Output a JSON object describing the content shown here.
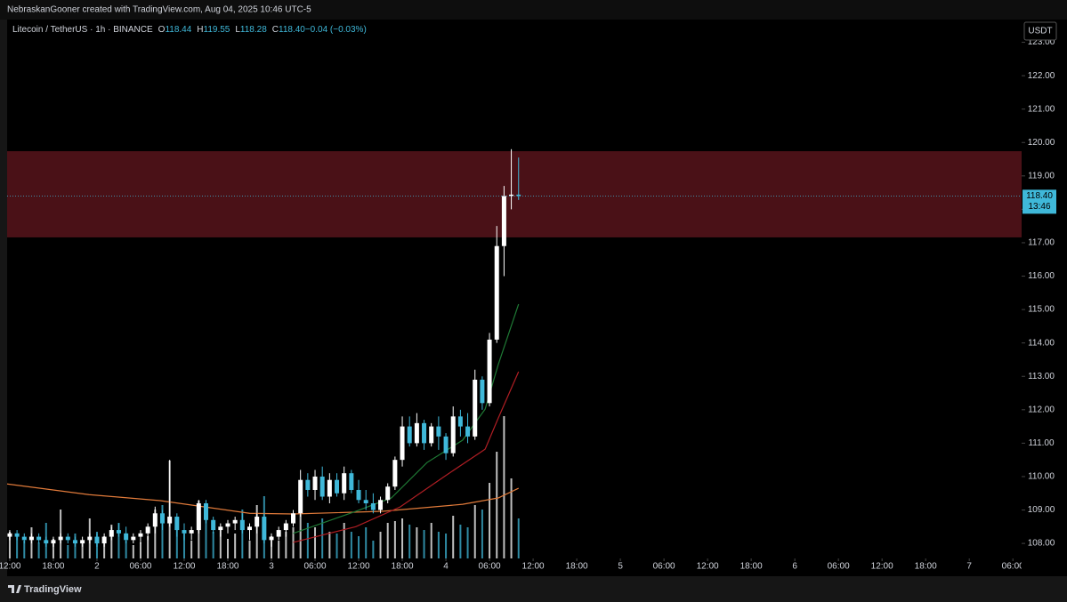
{
  "chart_data": {
    "type": "candlestick",
    "title": "NebraskanGooner created with TradingView.com, Aug 04, 2025 10:46 UTC-5",
    "subtitle": "Litecoin / TetherUS · 1h · BINANCE",
    "legend_values": [
      {
        "key": "O",
        "value": "118.44"
      },
      {
        "key": "H",
        "value": "119.55"
      },
      {
        "key": "L",
        "value": "118.28"
      },
      {
        "key": "C",
        "value": "118.40"
      },
      {
        "key": "",
        "value": "−0.04 (−0.03%)"
      }
    ],
    "currency": "USDT",
    "last_price": 118.4,
    "last_price_label": "118.40",
    "countdown": "13:46",
    "footer": "TradingView",
    "up_color": "#ffffff",
    "down_color": "#3fb8d9",
    "zone": {
      "from": 117.16,
      "to": 119.74,
      "color": "#4a1117"
    },
    "ylim": [
      107.55,
      123.68
    ],
    "yticks": [
      {
        "value": 108,
        "label": "108.00"
      },
      {
        "value": 109,
        "label": "109.00"
      },
      {
        "value": 110,
        "label": "110.00"
      },
      {
        "value": 111,
        "label": "111.00"
      },
      {
        "value": 112,
        "label": "112.00"
      },
      {
        "value": 113,
        "label": "113.00"
      },
      {
        "value": 114,
        "label": "114.00"
      },
      {
        "value": 115,
        "label": "115.00"
      },
      {
        "value": 116,
        "label": "116.00"
      },
      {
        "value": 117,
        "label": "117.00"
      },
      {
        "value": 118,
        "label": "118.00"
      },
      {
        "value": 119,
        "label": "119.00"
      },
      {
        "value": 120,
        "label": "120.00"
      },
      {
        "value": 121,
        "label": "121.00"
      },
      {
        "value": 122,
        "label": "122.00"
      },
      {
        "value": 123,
        "label": "123.00"
      }
    ],
    "xlim": [
      -12.36,
      127.2
    ],
    "xticks": [
      {
        "value": -12,
        "label": "12:00"
      },
      {
        "value": -6,
        "label": "18:00"
      },
      {
        "value": 0,
        "label": "2"
      },
      {
        "value": 6,
        "label": "06:00"
      },
      {
        "value": 12,
        "label": "12:00"
      },
      {
        "value": 18,
        "label": "18:00"
      },
      {
        "value": 24,
        "label": "3"
      },
      {
        "value": 30,
        "label": "06:00"
      },
      {
        "value": 36,
        "label": "12:00"
      },
      {
        "value": 42,
        "label": "18:00"
      },
      {
        "value": 48,
        "label": "4"
      },
      {
        "value": 54,
        "label": "06:00"
      },
      {
        "value": 60,
        "label": "12:00"
      },
      {
        "value": 66,
        "label": "18:00"
      },
      {
        "value": 72,
        "label": "5"
      },
      {
        "value": 78,
        "label": "06:00"
      },
      {
        "value": 84,
        "label": "12:00"
      },
      {
        "value": 90,
        "label": "18:00"
      },
      {
        "value": 96,
        "label": "6"
      },
      {
        "value": 102,
        "label": "06:00"
      },
      {
        "value": 108,
        "label": "12:00"
      },
      {
        "value": 114,
        "label": "18:00"
      },
      {
        "value": 120,
        "label": "7"
      },
      {
        "value": 126,
        "label": "06:00"
      }
    ],
    "x": [
      -12,
      -11,
      -10,
      -9,
      -8,
      -7,
      -6,
      -5,
      -4,
      -3,
      -2,
      -1,
      0,
      1,
      2,
      3,
      4,
      5,
      6,
      7,
      8,
      9,
      10,
      11,
      12,
      13,
      14,
      15,
      16,
      17,
      18,
      19,
      20,
      21,
      22,
      23,
      24,
      25,
      26,
      27,
      28,
      29,
      30,
      31,
      32,
      33,
      34,
      35,
      36,
      37,
      38,
      39,
      40,
      41,
      42,
      43,
      44,
      45,
      46,
      47,
      48,
      49,
      50,
      51,
      52,
      53,
      54,
      55,
      56,
      57,
      58
    ],
    "open": [
      108.2,
      108.3,
      108.2,
      108.1,
      108.2,
      108.1,
      108.0,
      108.1,
      108.2,
      108.1,
      108.0,
      108.1,
      108.2,
      108.0,
      108.2,
      108.4,
      108.3,
      108.1,
      108.2,
      108.3,
      108.5,
      108.9,
      108.6,
      108.8,
      108.4,
      108.3,
      108.4,
      109.2,
      108.7,
      108.4,
      108.5,
      108.6,
      108.7,
      108.4,
      108.5,
      108.8,
      108.1,
      108.2,
      108.4,
      108.6,
      108.9,
      109.9,
      109.6,
      110.0,
      109.4,
      109.9,
      109.5,
      110.1,
      109.6,
      109.3,
      109.2,
      109.0,
      109.3,
      109.7,
      110.5,
      111.5,
      111.0,
      111.6,
      111.0,
      111.5,
      111.2,
      110.7,
      111.8,
      111.5,
      111.2,
      112.9,
      112.2,
      114.1,
      116.9,
      118.4,
      118.44
    ],
    "high": [
      108.4,
      108.4,
      108.3,
      108.3,
      108.3,
      108.2,
      108.2,
      108.3,
      108.3,
      108.2,
      108.2,
      108.3,
      108.3,
      108.3,
      108.5,
      108.6,
      108.5,
      108.3,
      108.4,
      108.6,
      109.1,
      109.0,
      110.5,
      108.9,
      108.6,
      108.5,
      109.3,
      109.3,
      108.8,
      108.6,
      108.7,
      108.8,
      108.9,
      108.6,
      108.9,
      108.9,
      108.3,
      108.5,
      108.7,
      109.0,
      110.2,
      110.1,
      110.2,
      110.3,
      110.1,
      110.1,
      110.3,
      110.2,
      109.9,
      109.6,
      109.5,
      109.4,
      109.8,
      110.6,
      111.8,
      111.8,
      111.9,
      111.7,
      111.6,
      111.8,
      111.3,
      112.1,
      112.0,
      111.9,
      113.2,
      113.0,
      114.3,
      117.5,
      118.7,
      119.8,
      119.55
    ],
    "low": [
      108.1,
      108.1,
      108.0,
      108.0,
      108.0,
      107.9,
      107.9,
      108.0,
      108.0,
      107.9,
      107.9,
      108.0,
      107.9,
      107.9,
      108.1,
      108.2,
      108.0,
      108.0,
      108.0,
      108.1,
      108.3,
      108.4,
      108.5,
      108.2,
      108.1,
      108.1,
      108.3,
      108.6,
      108.3,
      108.2,
      108.3,
      108.4,
      108.3,
      108.1,
      108.3,
      108.0,
      107.9,
      108.1,
      108.2,
      108.5,
      108.8,
      109.4,
      109.3,
      109.3,
      109.2,
      109.4,
      109.3,
      109.5,
      109.2,
      109.0,
      108.9,
      108.9,
      109.2,
      109.6,
      110.3,
      110.9,
      110.9,
      110.8,
      110.9,
      110.8,
      110.5,
      110.6,
      111.2,
      111.0,
      111.1,
      112.0,
      112.1,
      114.0,
      116.0,
      118.0,
      118.28
    ],
    "close": [
      108.3,
      108.2,
      108.1,
      108.2,
      108.1,
      108.0,
      108.1,
      108.2,
      108.1,
      108.0,
      108.1,
      108.2,
      108.0,
      108.2,
      108.4,
      108.3,
      108.1,
      108.2,
      108.3,
      108.5,
      108.9,
      108.6,
      108.8,
      108.4,
      108.3,
      108.4,
      109.2,
      108.7,
      108.4,
      108.5,
      108.6,
      108.7,
      108.4,
      108.5,
      108.8,
      108.1,
      108.2,
      108.4,
      108.6,
      108.9,
      109.9,
      109.6,
      110.0,
      109.4,
      109.9,
      109.5,
      110.1,
      109.6,
      109.3,
      109.2,
      109.0,
      109.3,
      109.7,
      110.5,
      111.5,
      111.0,
      111.6,
      111.0,
      111.5,
      111.2,
      110.7,
      111.8,
      111.5,
      111.2,
      112.9,
      112.2,
      114.1,
      116.9,
      118.4,
      118.44,
      118.4
    ],
    "volume": [
      30,
      25,
      20,
      35,
      18,
      40,
      22,
      55,
      15,
      28,
      20,
      45,
      30,
      25,
      38,
      40,
      20,
      15,
      18,
      25,
      55,
      60,
      110,
      40,
      28,
      20,
      65,
      45,
      30,
      35,
      22,
      28,
      55,
      20,
      60,
      70,
      25,
      20,
      30,
      35,
      50,
      40,
      35,
      45,
      30,
      28,
      40,
      30,
      25,
      35,
      20,
      30,
      40,
      42,
      45,
      38,
      35,
      32,
      40,
      30,
      28,
      48,
      38,
      35,
      60,
      55,
      85,
      120,
      160,
      90,
      45
    ],
    "lines": [
      {
        "color": "#e07a3a",
        "x": [
          -12.4,
          -1.1,
          8.7,
          21,
          27,
          39.3,
          50.3,
          55.2,
          58
        ],
        "values": [
          109.78,
          109.46,
          109.28,
          108.9,
          108.88,
          108.96,
          109.17,
          109.36,
          109.65
        ]
      },
      {
        "color": "#b01e24",
        "x": [
          27,
          35.6,
          41.7,
          47.9,
          53.4,
          55.2,
          58
        ],
        "values": [
          108.03,
          108.5,
          109.09,
          110.02,
          110.82,
          111.75,
          113.14
        ]
      },
      {
        "color": "#1f7a35",
        "x": [
          27,
          35.6,
          40.5,
          45.4,
          50.3,
          53.4,
          55.2,
          58
        ],
        "values": [
          108.3,
          108.96,
          109.36,
          110.42,
          111.09,
          112.02,
          113.35,
          115.16
        ]
      }
    ]
  }
}
